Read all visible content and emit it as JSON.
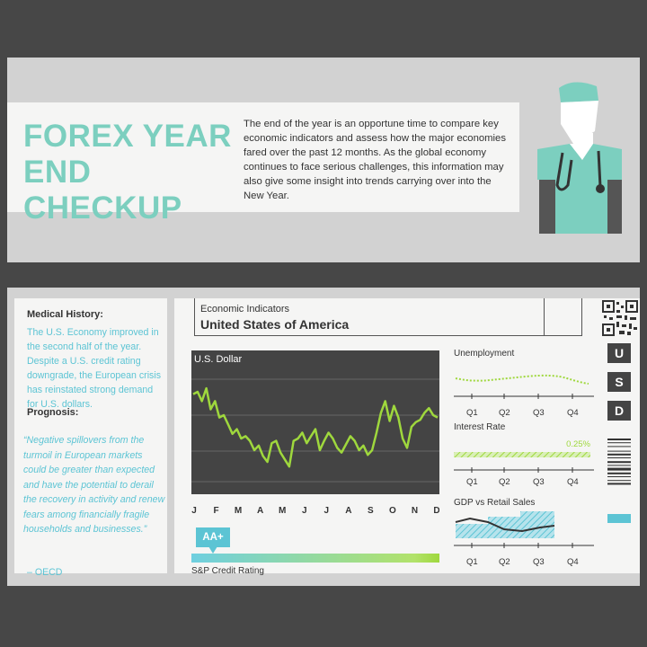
{
  "header": {
    "title_line1": "FOREX YEAR",
    "title_line2": "END CHECKUP",
    "intro": "The end of the year is an opportune time to compare key economic indicators and assess how the major economies fared over the past 12 months. As the global economy continues to face serious challenges, this information may also give some insight into trends carrying over into the New Year."
  },
  "left": {
    "history_label": "Medical History:",
    "history_text": "The U.S. Economy improved in the second half of the year. Despite a U.S. credit rating downgrade, the European crisis has reinstated strong demand for U.S. dollars.",
    "prognosis_label": "Prognosis:",
    "prognosis_text": "“Negative spillovers from the turmoil in European markets could be greater than expected and have the potential to derail the recovery in activity and renew fears among financially fragile households and businesses.”",
    "source": "– OECD"
  },
  "indicators": {
    "subtitle": "Economic Indicators",
    "country": "United States of America"
  },
  "usd": {
    "title": "U.S. Dollar",
    "months": [
      "J",
      "F",
      "M",
      "A",
      "M",
      "J",
      "J",
      "A",
      "S",
      "O",
      "N",
      "D"
    ],
    "values": [
      78,
      80,
      72,
      83,
      65,
      72,
      58,
      60,
      52,
      44,
      48,
      40,
      42,
      38,
      30,
      34,
      25,
      20,
      36,
      38,
      28,
      22,
      16,
      38,
      40,
      45,
      36,
      42,
      48,
      30,
      38,
      45,
      40,
      32,
      28,
      35,
      42,
      38,
      30,
      34,
      26,
      30,
      45,
      62,
      72,
      55,
      68,
      58,
      40,
      32,
      50,
      54,
      56,
      62,
      66,
      60,
      58
    ]
  },
  "rating": {
    "badge": "AA+",
    "label": "S&P Credit Rating"
  },
  "mini_charts": {
    "quarters": [
      "Q1",
      "Q2",
      "Q3",
      "Q4"
    ],
    "unemployment_title": "Unemployment",
    "interest_title": "Interest Rate",
    "interest_value": "0.25%",
    "gdp_title": "GDP vs Retail Sales"
  },
  "currency_letters": [
    "U",
    "S",
    "D"
  ],
  "colors": {
    "teal": "#7ccfbf",
    "blue": "#5cc4d4",
    "green": "#9fd83d",
    "dark": "#444444"
  }
}
